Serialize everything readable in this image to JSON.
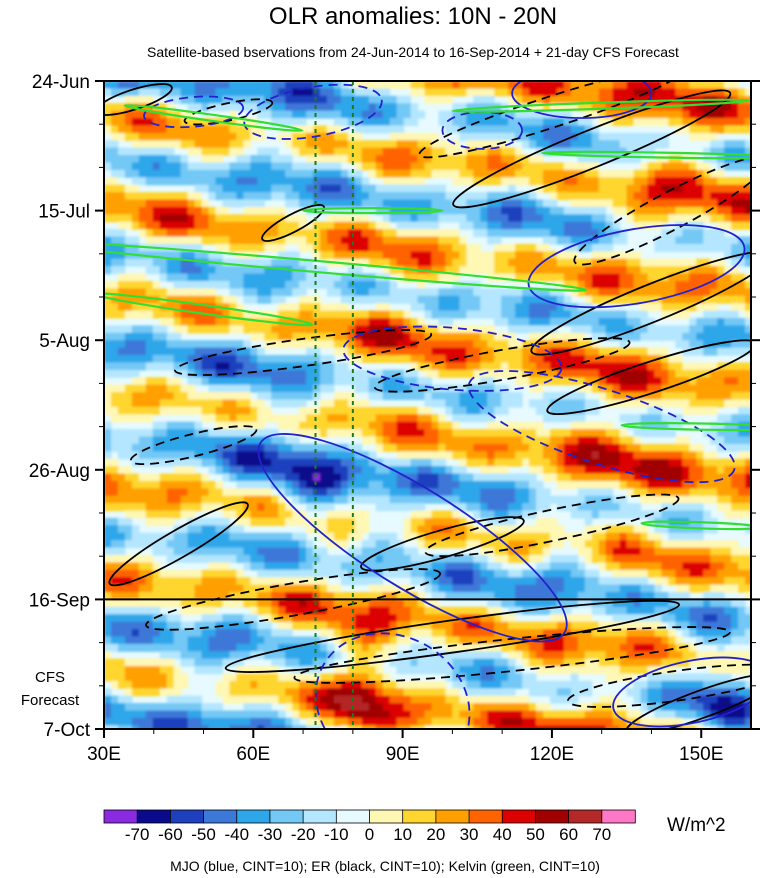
{
  "chart_data": {
    "type": "heatmap",
    "title": "OLR anomalies: 10N - 20N",
    "subtitle": "Satellite-based bservations from 24-Jun-2014 to 16-Sep-2014 + 21-day CFS Forecast",
    "x_axis": {
      "range": [
        30,
        160
      ],
      "tick_values": [
        30,
        60,
        90,
        120,
        150
      ],
      "tick_labels": [
        "30E",
        "60E",
        "90E",
        "120E",
        "150E"
      ]
    },
    "y_axis": {
      "range_days": [
        0,
        105
      ],
      "tick_days": [
        0,
        21,
        42,
        63,
        84,
        105
      ],
      "tick_labels": [
        "24-Jun",
        "15-Jul",
        "5-Aug",
        "26-Aug",
        "16-Sep",
        "7-Oct"
      ],
      "observation_end_label": "16-Sep",
      "forecast_label": [
        "CFS",
        "Forecast"
      ]
    },
    "reference_lines_longitude": [
      72.5,
      80
    ],
    "colorbar": {
      "unit": "W/m^2",
      "levels": [
        -70,
        -60,
        -50,
        -40,
        -30,
        -20,
        -10,
        0,
        10,
        20,
        30,
        40,
        50,
        60,
        70
      ],
      "labels": [
        "-70",
        "-60",
        "-50",
        "-40",
        "-30",
        "-20",
        "-10",
        "0",
        "10",
        "20",
        "30",
        "40",
        "50",
        "60",
        "70"
      ],
      "colors": [
        "#8a2be2",
        "#0a0a8c",
        "#1e3fbe",
        "#3c78d8",
        "#2ea6ea",
        "#73c8f5",
        "#b4e6ff",
        "#e6faff",
        "#fff7b4",
        "#ffd62e",
        "#ffa000",
        "#ff6400",
        "#dc0000",
        "#a00000",
        "#b42828",
        "#ff78c8"
      ]
    },
    "contour_legend": "MJO (blue, CINT=10); ER (black, CINT=10); Kelvin (green, CINT=10)",
    "series_colors": {
      "MJO": "#2222cc",
      "ER": "#000000",
      "Kelvin": "#33dd33"
    }
  }
}
